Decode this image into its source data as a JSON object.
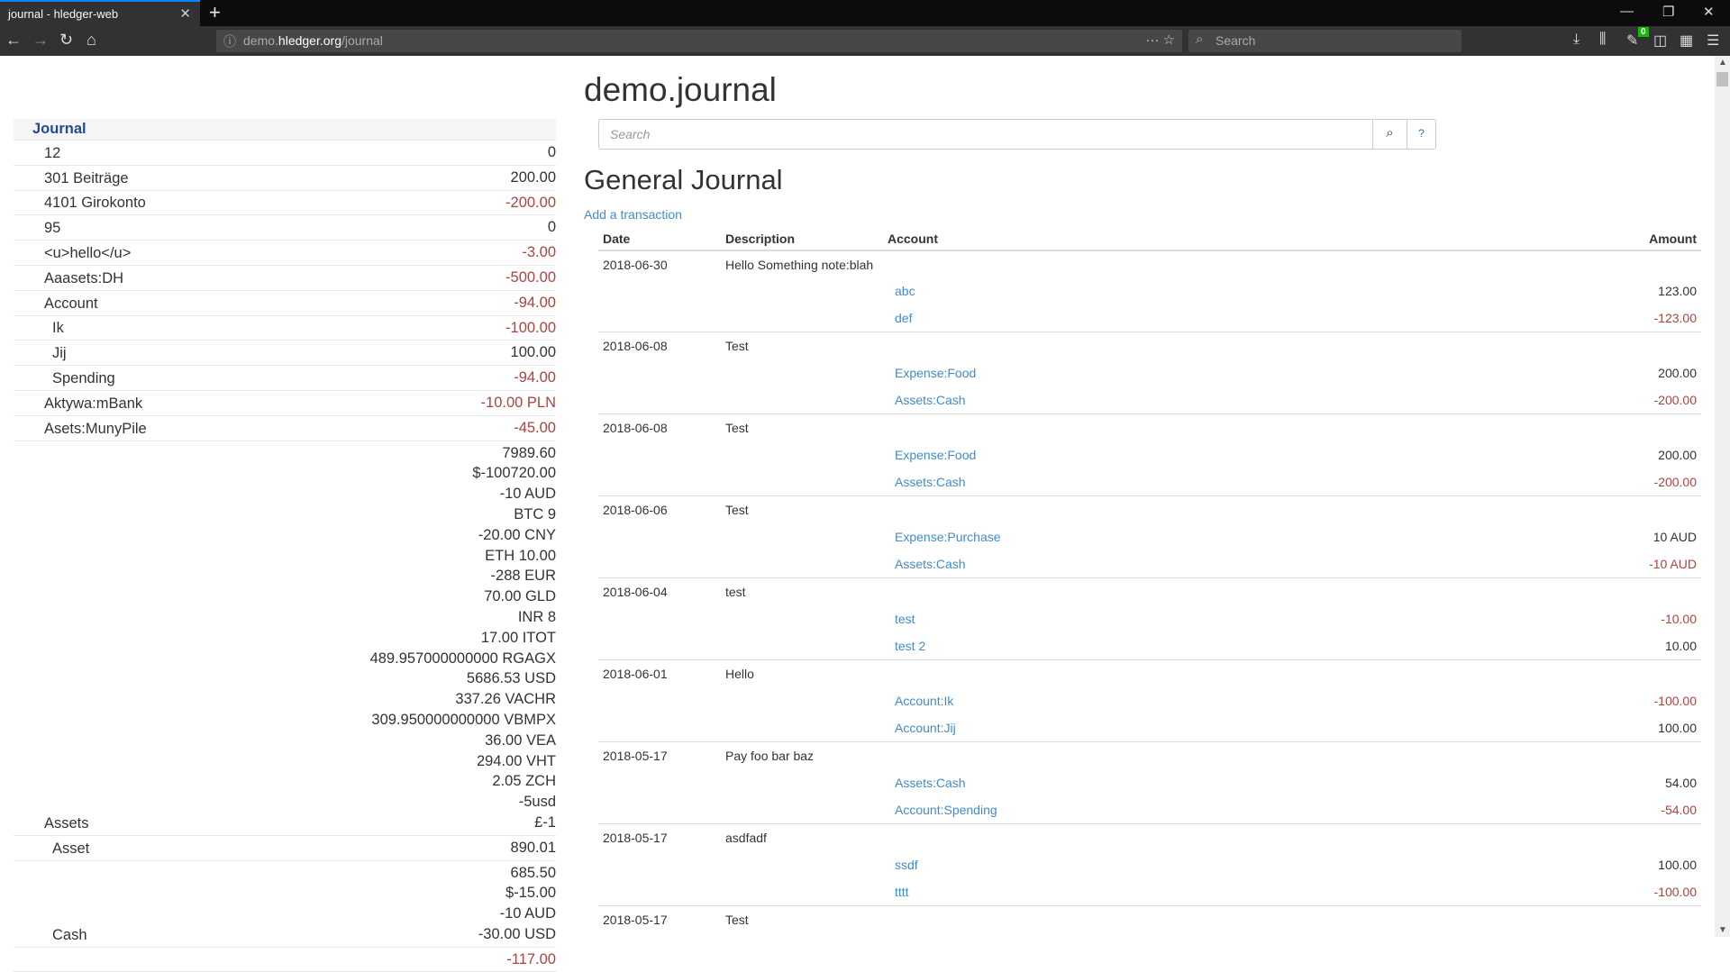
{
  "browser": {
    "tab_title": "journal - hledger-web",
    "url_host_prefix": "demo.",
    "url_host": "hledger.org",
    "url_path": "/journal",
    "search_placeholder": "Search",
    "badge_count": "0"
  },
  "sidebar": {
    "title": "Journal",
    "rows": [
      {
        "name": "12",
        "level": 1,
        "amounts": [
          "0"
        ],
        "neg": false
      },
      {
        "name": "301 Beiträge",
        "level": 1,
        "amounts": [
          "200.00"
        ],
        "neg": false
      },
      {
        "name": "4101 Girokonto",
        "level": 1,
        "amounts": [
          "-200.00"
        ],
        "neg": true
      },
      {
        "name": "95",
        "level": 1,
        "amounts": [
          "0"
        ],
        "neg": false
      },
      {
        "name": "<u>hello</u>",
        "level": 1,
        "amounts": [
          "-3.00"
        ],
        "neg": true
      },
      {
        "name": "Aaasets:DH",
        "level": 1,
        "amounts": [
          "-500.00"
        ],
        "neg": true
      },
      {
        "name": "Account",
        "level": 1,
        "amounts": [
          "-94.00"
        ],
        "neg": true
      },
      {
        "name": "Ik",
        "level": 2,
        "amounts": [
          "-100.00"
        ],
        "neg": true
      },
      {
        "name": "Jij",
        "level": 2,
        "amounts": [
          "100.00"
        ],
        "neg": false
      },
      {
        "name": "Spending",
        "level": 2,
        "amounts": [
          "-94.00"
        ],
        "neg": true
      },
      {
        "name": "Aktywa:mBank",
        "level": 1,
        "amounts": [
          "-10.00 PLN"
        ],
        "neg": true
      },
      {
        "name": "Asets:MunyPile",
        "level": 1,
        "amounts": [
          "-45.00"
        ],
        "neg": true
      },
      {
        "name": "Assets",
        "level": 1,
        "amounts": [
          "7989.60",
          "$-100720.00",
          "-10 AUD",
          "BTC 9",
          "-20.00 CNY",
          "ETH 10.00",
          "-288 EUR",
          "70.00 GLD",
          "INR 8",
          "17.00 ITOT",
          "489.957000000000 RGAGX",
          "5686.53 USD",
          "337.26 VACHR",
          "309.950000000000 VBMPX",
          "36.00 VEA",
          "294.00 VHT",
          "2.05 ZCH",
          "-5usd",
          "£-1"
        ],
        "neg": false
      },
      {
        "name": "Asset",
        "level": 2,
        "amounts": [
          "890.01"
        ],
        "neg": false
      },
      {
        "name": "Cash",
        "level": 2,
        "amounts": [
          "685.50",
          "$-15.00",
          "-10 AUD",
          "-30.00 USD"
        ],
        "neg": false
      },
      {
        "name": "",
        "level": 2,
        "amounts": [
          "-117.00"
        ],
        "neg": false
      }
    ]
  },
  "main": {
    "title": "demo.journal",
    "search_placeholder": "Search",
    "help_label": "?",
    "heading": "General Journal",
    "add_link": "Add a transaction",
    "columns": {
      "date": "Date",
      "description": "Description",
      "account": "Account",
      "amount": "Amount"
    },
    "transactions": [
      {
        "date": "2018-06-30",
        "description": "Hello Something note:blah",
        "postings": [
          {
            "account": "abc",
            "amount": "123.00",
            "neg": false
          },
          {
            "account": "def",
            "amount": "-123.00",
            "neg": true
          }
        ]
      },
      {
        "date": "2018-06-08",
        "description": "Test",
        "postings": [
          {
            "account": "Expense:Food",
            "amount": "200.00",
            "neg": false
          },
          {
            "account": "Assets:Cash",
            "amount": "-200.00",
            "neg": true
          }
        ]
      },
      {
        "date": "2018-06-08",
        "description": "Test",
        "postings": [
          {
            "account": "Expense:Food",
            "amount": "200.00",
            "neg": false
          },
          {
            "account": "Assets:Cash",
            "amount": "-200.00",
            "neg": true
          }
        ]
      },
      {
        "date": "2018-06-06",
        "description": "Test",
        "postings": [
          {
            "account": "Expense:Purchase",
            "amount": "10 AUD",
            "neg": false
          },
          {
            "account": "Assets:Cash",
            "amount": "-10 AUD",
            "neg": true
          }
        ]
      },
      {
        "date": "2018-06-04",
        "description": "test",
        "postings": [
          {
            "account": "test",
            "amount": "-10.00",
            "neg": true
          },
          {
            "account": "test 2",
            "amount": "10.00",
            "neg": false
          }
        ]
      },
      {
        "date": "2018-06-01",
        "description": "Hello",
        "postings": [
          {
            "account": "Account:Ik",
            "amount": "-100.00",
            "neg": true
          },
          {
            "account": "Account:Jij",
            "amount": "100.00",
            "neg": false
          }
        ]
      },
      {
        "date": "2018-05-17",
        "description": "Pay foo bar baz",
        "postings": [
          {
            "account": "Assets:Cash",
            "amount": "54.00",
            "neg": false
          },
          {
            "account": "Account:Spending",
            "amount": "-54.00",
            "neg": true
          }
        ]
      },
      {
        "date": "2018-05-17",
        "description": "asdfadf",
        "postings": [
          {
            "account": "ssdf",
            "amount": "100.00",
            "neg": false
          },
          {
            "account": "tttt",
            "amount": "-100.00",
            "neg": true
          }
        ]
      },
      {
        "date": "2018-05-17",
        "description": "Test",
        "postings": []
      }
    ]
  }
}
